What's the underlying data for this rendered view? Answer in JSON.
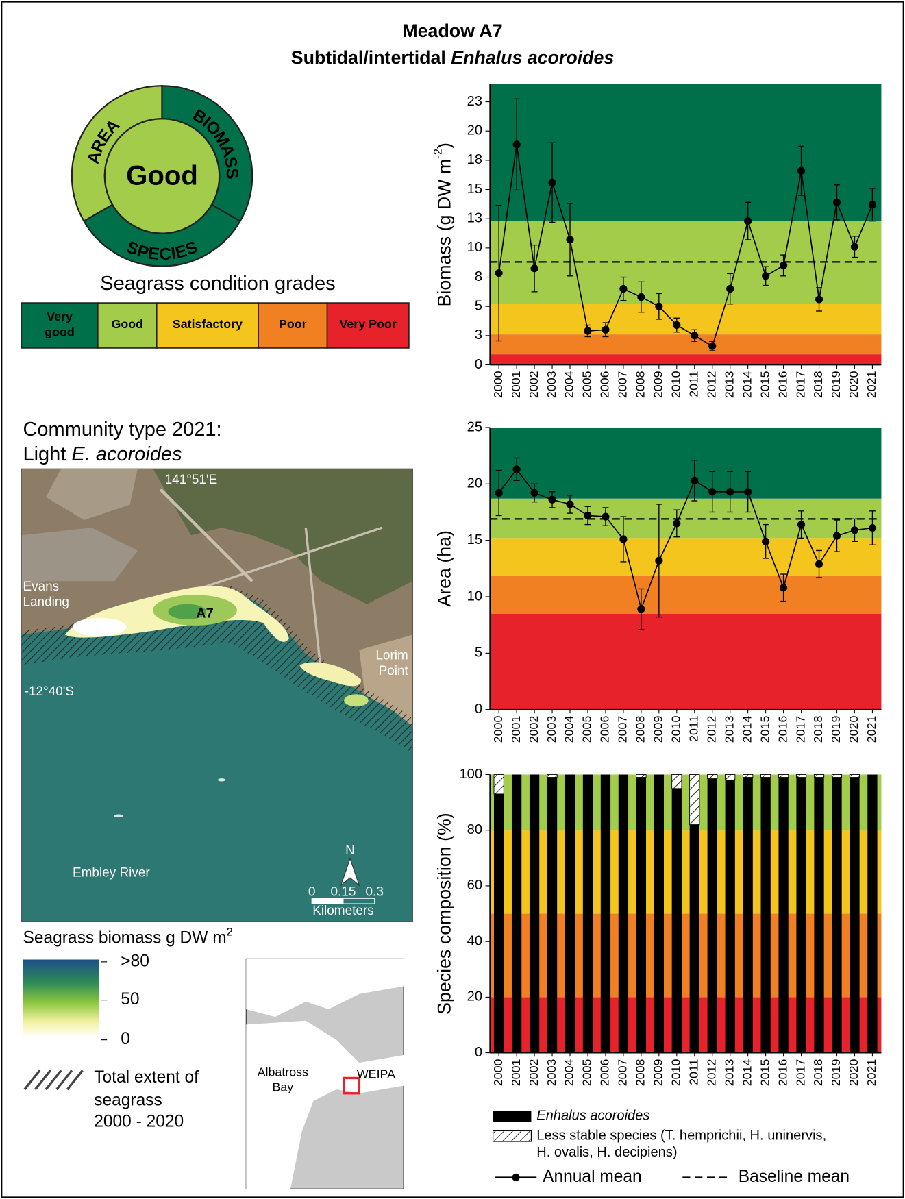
{
  "header": {
    "title": "Meadow A7",
    "subtitle": [
      "Subtidal/intertidal ",
      "Enhalus acoroides"
    ]
  },
  "condition": {
    "overall": "Good",
    "color": "#a2cc4a",
    "segments": [
      {
        "label": "AREA",
        "color": "#a2cc4a"
      },
      {
        "label": "BIOMASS",
        "color": "#00704b"
      },
      {
        "label": "SPECIES",
        "color": "#00704b"
      }
    ]
  },
  "grades": {
    "title": "Seagrass condition grades",
    "items": [
      {
        "label": [
          "Very",
          "good"
        ],
        "color": "#00704b"
      },
      {
        "label": [
          "Good"
        ],
        "color": "#a2cc4a"
      },
      {
        "label": [
          "Satisfactory"
        ],
        "color": "#f4c51c"
      },
      {
        "label": [
          "Poor"
        ],
        "color": "#f08021"
      },
      {
        "label": [
          "Very Poor"
        ],
        "color": "#e8222a"
      }
    ]
  },
  "community": {
    "line1": "Community type 2021:",
    "line2": [
      "Light ",
      "E. acoroides"
    ]
  },
  "map": {
    "longitude": "141°51'E",
    "latitude": "-12°40'S",
    "place1": [
      "Evans",
      "Landing"
    ],
    "place2": [
      "Lorim",
      "Point"
    ],
    "meadow": "A7",
    "river": "Embley River",
    "north": "N",
    "scale": [
      "0",
      "0.15",
      "0.3"
    ],
    "scale_unit": "Kilometers"
  },
  "biomass_legend": {
    "title": "Seagrass biomass g DW m",
    "title_sup": "2",
    "labels": [
      ">80",
      "50",
      "0"
    ]
  },
  "extent_legend": {
    "lines": [
      "Total extent of",
      "seagrass",
      "2000 - 2020"
    ]
  },
  "inset": {
    "bay": [
      "Albatross",
      "Bay"
    ],
    "town": "WEIPA"
  },
  "legend": {
    "annual_mean": "Annual mean",
    "baseline_mean": "Baseline mean"
  },
  "chart_data": [
    {
      "type": "line",
      "ylabel": "Biomass (g DW m",
      "ylabel_sup": "-2",
      "ylabel_end": ")",
      "categories": [
        "2000",
        "2001",
        "2002",
        "2003",
        "2004",
        "2005",
        "2006",
        "2007",
        "2008",
        "2009",
        "2010",
        "2011",
        "2012",
        "2013",
        "2014",
        "2015",
        "2016",
        "2017",
        "2018",
        "2019",
        "2020",
        "2021"
      ],
      "values": [
        7.85,
        18.85,
        8.25,
        15.6,
        10.7,
        2.9,
        3.0,
        6.5,
        5.8,
        5.0,
        3.4,
        2.5,
        1.6,
        6.5,
        12.3,
        7.6,
        8.5,
        16.6,
        5.6,
        13.9,
        10.1,
        13.7
      ],
      "errors": [
        5.8,
        3.9,
        2.0,
        3.4,
        3.1,
        0.5,
        0.6,
        1.0,
        1.3,
        1.1,
        0.6,
        0.5,
        0.4,
        1.3,
        1.6,
        0.8,
        0.9,
        2.1,
        1.0,
        1.5,
        0.9,
        1.4
      ],
      "baseline": 8.8,
      "color": "#000000",
      "ylim": [
        0,
        24
      ],
      "yticks": [
        0,
        {
          "value": 2.5,
          "label": "3"
        },
        5,
        {
          "value": 7.5,
          "label": "8"
        },
        10,
        {
          "value": 12.5,
          "label": "13"
        },
        15,
        {
          "value": 17.5,
          "label": "18"
        },
        20,
        {
          "value": 22.5,
          "label": "23"
        }
      ],
      "bands": [
        {
          "from": 0,
          "to": 0.9,
          "color": "#e8222a"
        },
        {
          "from": 0.9,
          "to": 2.6,
          "color": "#f08021"
        },
        {
          "from": 2.6,
          "to": 5.2,
          "color": "#f4c51c"
        },
        {
          "from": 5.2,
          "to": 12.3,
          "color": "#a2cc4a"
        },
        {
          "from": 12.3,
          "to": 24,
          "color": "#00704b"
        }
      ]
    },
    {
      "type": "line",
      "ylabel": "Area (ha)",
      "categories": [
        "2000",
        "2001",
        "2002",
        "2003",
        "2004",
        "2005",
        "2006",
        "2007",
        "2008",
        "2009",
        "2010",
        "2011",
        "2012",
        "2013",
        "2014",
        "2015",
        "2016",
        "2017",
        "2018",
        "2019",
        "2020",
        "2021"
      ],
      "values": [
        19.2,
        21.3,
        19.2,
        18.6,
        18.2,
        17.2,
        17.1,
        15.1,
        8.9,
        13.2,
        16.5,
        20.3,
        19.3,
        19.3,
        19.3,
        14.9,
        10.8,
        16.4,
        12.9,
        15.4,
        15.9,
        16.1
      ],
      "errors": [
        2.0,
        1.0,
        0.8,
        0.7,
        0.8,
        0.8,
        0.8,
        2.0,
        1.8,
        5.0,
        1.2,
        1.8,
        1.8,
        1.8,
        1.8,
        1.5,
        1.2,
        1.2,
        1.2,
        1.4,
        1.0,
        1.5
      ],
      "baseline": 16.9,
      "color": "#000000",
      "ylim": [
        0,
        25
      ],
      "yticks": [
        0,
        5,
        10,
        15,
        20,
        25
      ],
      "bands": [
        {
          "from": 0,
          "to": 8.5,
          "color": "#e8222a"
        },
        {
          "from": 8.5,
          "to": 11.9,
          "color": "#f08021"
        },
        {
          "from": 11.9,
          "to": 15.2,
          "color": "#f4c51c"
        },
        {
          "from": 15.2,
          "to": 18.7,
          "color": "#a2cc4a"
        },
        {
          "from": 18.7,
          "to": 25,
          "color": "#00704b"
        }
      ]
    },
    {
      "type": "stacked_bar",
      "ylabel": "Species composition (%)",
      "categories": [
        "2000",
        "2001",
        "2002",
        "2003",
        "2004",
        "2005",
        "2006",
        "2007",
        "2008",
        "2009",
        "2010",
        "2011",
        "2012",
        "2013",
        "2014",
        "2015",
        "2016",
        "2017",
        "2018",
        "2019",
        "2020",
        "2021"
      ],
      "series": [
        {
          "name": [
            "Enhalus acoroides"
          ],
          "color": "#000000",
          "values": [
            93,
            100,
            100,
            99,
            100,
            100,
            100,
            100,
            99,
            100,
            95,
            82,
            98.5,
            98,
            99,
            99,
            99,
            99,
            99,
            99,
            99,
            100
          ]
        },
        {
          "name": [
            "Less stable species (T. hemprichii, H. uninervis,",
            "H. ovalis, H. decipiens)"
          ],
          "color": "#ffffff",
          "hatch": true,
          "values": [
            7,
            0,
            0,
            1,
            0,
            0,
            0,
            0,
            1,
            0,
            5,
            18,
            1.5,
            2,
            1,
            1,
            1,
            1,
            1,
            1,
            1,
            0
          ]
        }
      ],
      "ylim": [
        0,
        100
      ],
      "yticks": [
        0,
        20,
        40,
        60,
        80,
        100
      ],
      "bands": [
        {
          "from": 0,
          "to": 20,
          "color": "#e8222a"
        },
        {
          "from": 20,
          "to": 50,
          "color": "#f08021"
        },
        {
          "from": 50,
          "to": 80,
          "color": "#f4c51c"
        },
        {
          "from": 80,
          "to": 100,
          "color": "#a2cc4a"
        }
      ]
    }
  ]
}
